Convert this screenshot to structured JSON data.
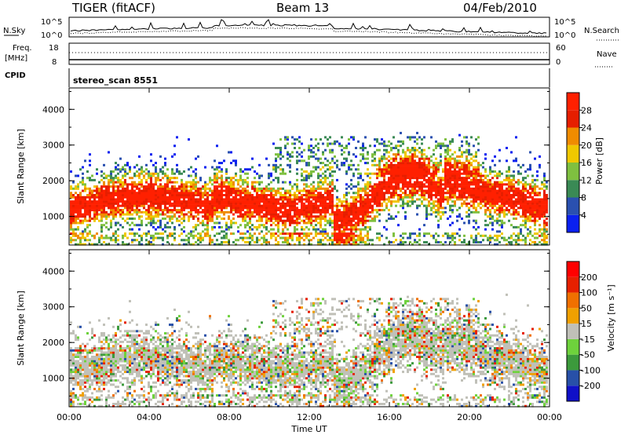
{
  "header": {
    "station": "TIGER (fitACF)",
    "beam": "Beam 13",
    "date": "04/Feb/2010"
  },
  "noise_panel": {
    "left_label": "N.Sky",
    "right_label": "N.Search",
    "left_ticks": [
      "10^5",
      "10^0"
    ],
    "right_ticks": [
      "10^5",
      "10^0"
    ]
  },
  "freq_panel": {
    "left_label_1": "Freq.",
    "left_label_2": "[MHz]",
    "right_label": "Nave",
    "left_ticks": [
      "18",
      "8"
    ],
    "right_ticks": [
      "60",
      "0"
    ]
  },
  "cpid_panel": {
    "label": "CPID",
    "value": "stereo_scan 8551"
  },
  "chart_data": [
    {
      "type": "heatmap",
      "name": "power",
      "ylabel": "Slant Range [km]",
      "ylim": [
        200,
        4600
      ],
      "yticks": [
        "1000",
        "2000",
        "3000",
        "4000"
      ],
      "colorbar_label": "Power [dB]",
      "colorbar_ticks": [
        "4",
        "8",
        "12",
        "16",
        "20",
        "24",
        "28"
      ],
      "colorbar_colors": [
        "#0a20f0",
        "#2a50b0",
        "#3a8a55",
        "#7fc040",
        "#f0c800",
        "#f08c00",
        "#e61e00",
        "#ff2000"
      ]
    },
    {
      "type": "heatmap",
      "name": "velocity",
      "ylabel": "Slant Range [km]",
      "ylim": [
        200,
        4600
      ],
      "yticks": [
        "1000",
        "2000",
        "3000",
        "4000"
      ],
      "colorbar_label": "Velocity [m s⁻¹]",
      "colorbar_ticks": [
        "200",
        "100",
        "50",
        "15",
        "-15",
        "-50",
        "-100",
        "-200"
      ],
      "colorbar_colors": [
        "#1010c8",
        "#2850a8",
        "#3c9a3c",
        "#6ed23c",
        "#c0c0b8",
        "#f0a000",
        "#f07000",
        "#e62000",
        "#ff0000"
      ]
    }
  ],
  "x_axis": {
    "label": "Time UT",
    "ticks": [
      "00:00",
      "04:00",
      "08:00",
      "12:00",
      "16:00",
      "20:00",
      "00:00"
    ]
  }
}
